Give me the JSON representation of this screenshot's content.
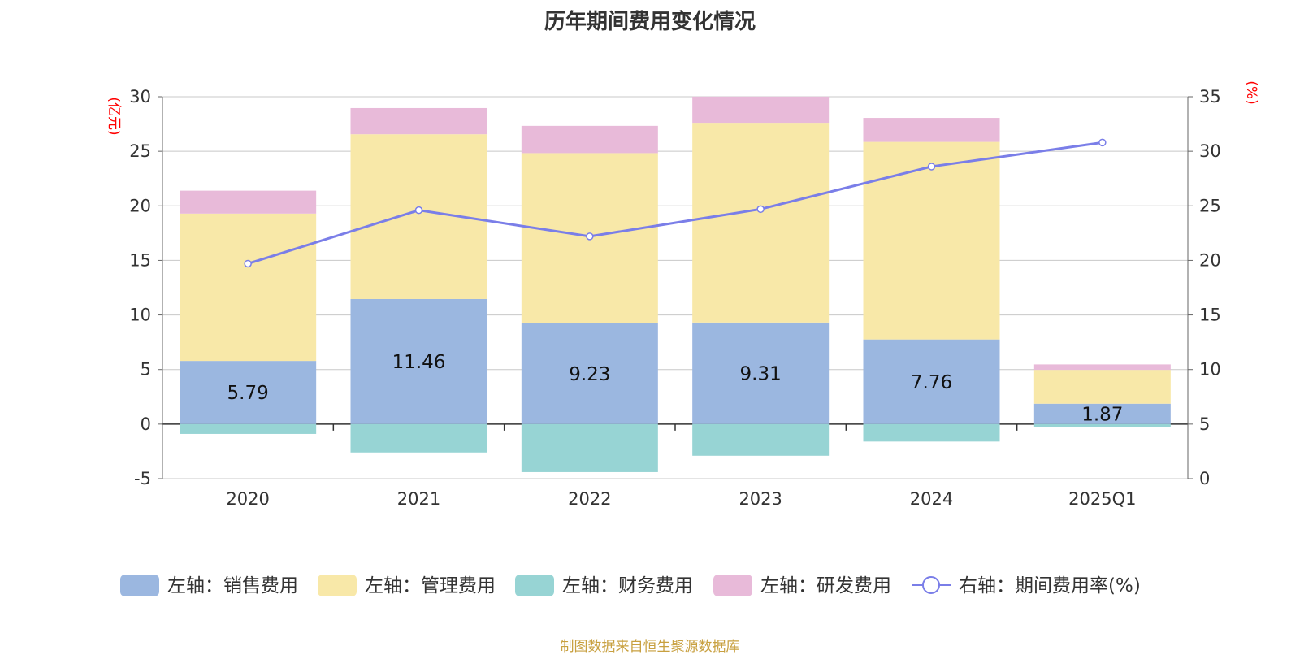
{
  "title": "历年期间费用变化情况",
  "source": "制图数据来自恒生聚源数据库",
  "chart_data": {
    "type": "bar",
    "stacked": true,
    "categories": [
      "2020",
      "2021",
      "2022",
      "2023",
      "2024",
      "2025Q1"
    ],
    "left_axis": {
      "unit": "(亿元)",
      "ticks": [
        30,
        25,
        20,
        15,
        10,
        5,
        0,
        -5
      ],
      "ylim": [
        -5,
        30
      ]
    },
    "right_axis": {
      "unit": "(%)",
      "ticks": [
        35,
        30,
        25,
        20,
        15,
        10,
        5,
        0
      ],
      "ylim": [
        0,
        35
      ]
    },
    "grid": true,
    "legend_position": "bottom",
    "series": [
      {
        "name": "左轴：销售费用",
        "axis": "left",
        "type": "bar",
        "color": "#9bb7e0",
        "values": [
          5.79,
          11.46,
          9.23,
          9.31,
          7.76,
          1.87
        ],
        "labels": [
          "5.79",
          "11.46",
          "9.23",
          "9.31",
          "7.76",
          "1.87"
        ]
      },
      {
        "name": "左轴：管理费用",
        "axis": "left",
        "type": "bar",
        "color": "#f8e8a8",
        "values": [
          13.5,
          15.1,
          15.6,
          18.3,
          18.1,
          3.1
        ]
      },
      {
        "name": "左轴：财务费用",
        "axis": "left",
        "type": "bar",
        "color": "#97d4d4",
        "values": [
          -0.9,
          -2.6,
          -4.4,
          -2.9,
          -1.6,
          -0.3
        ]
      },
      {
        "name": "左轴：研发费用",
        "axis": "left",
        "type": "bar",
        "color": "#e8bad9",
        "values": [
          2.1,
          2.4,
          2.5,
          2.4,
          2.2,
          0.5
        ]
      },
      {
        "name": "右轴：期间费用率(%)",
        "axis": "right",
        "type": "line",
        "color": "#7a7ee8",
        "values": [
          19.7,
          24.6,
          22.2,
          24.7,
          28.6,
          30.8
        ]
      }
    ]
  }
}
